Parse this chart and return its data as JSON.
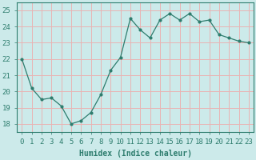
{
  "x": [
    0,
    1,
    2,
    3,
    4,
    5,
    6,
    7,
    8,
    9,
    10,
    11,
    12,
    13,
    14,
    15,
    16,
    17,
    18,
    19,
    20,
    21,
    22,
    23
  ],
  "y": [
    22.0,
    20.2,
    19.5,
    19.6,
    19.1,
    18.0,
    18.2,
    18.7,
    19.8,
    21.3,
    22.1,
    24.5,
    23.8,
    23.3,
    24.4,
    24.8,
    24.4,
    24.8,
    24.3,
    24.4,
    23.5,
    23.3,
    23.1,
    23.0
  ],
  "line_color": "#2e7d6e",
  "marker": ".",
  "marker_size": 4,
  "bg_color": "#cceaea",
  "grid_color_major": "#e8b4b4",
  "grid_color_minor": "#e8c8c8",
  "xlabel": "Humidex (Indice chaleur)",
  "ylim": [
    17.5,
    25.5
  ],
  "xlim": [
    -0.5,
    23.5
  ],
  "yticks": [
    18,
    19,
    20,
    21,
    22,
    23,
    24,
    25
  ],
  "xticks": [
    0,
    1,
    2,
    3,
    4,
    5,
    6,
    7,
    8,
    9,
    10,
    11,
    12,
    13,
    14,
    15,
    16,
    17,
    18,
    19,
    20,
    21,
    22,
    23
  ],
  "xlabel_fontsize": 7,
  "tick_fontsize": 6.5
}
